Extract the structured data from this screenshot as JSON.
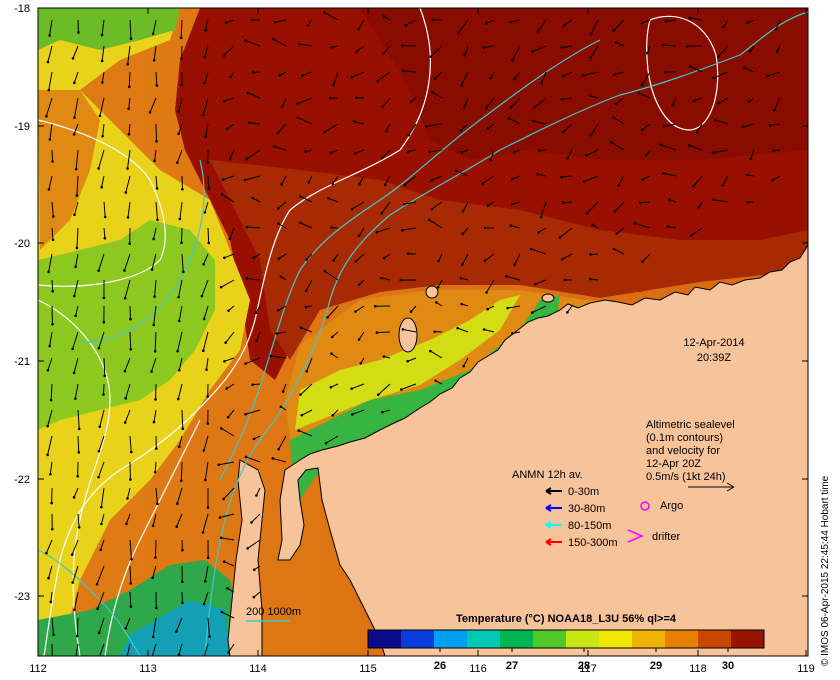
{
  "map": {
    "lon_ticks": [
      "112",
      "113",
      "114",
      "115",
      "116",
      "117",
      "118",
      "119"
    ],
    "lat_ticks": [
      "-18",
      "-19",
      "-20",
      "-21",
      "-22",
      "-23"
    ],
    "date_label": "12-Apr-2014",
    "time_label": "20:39Z",
    "credit": "© IMOS 06-Apr-2015 22:45:44 Hobart time"
  },
  "legend": {
    "altimetry_lines": [
      "Altimetric sealevel",
      "(0.1m contours)",
      "and velocity for",
      "12-Apr 20Z",
      "0.5m/s (1kt 24h)"
    ],
    "anmn_title": "ANMN 12h av.",
    "anmn_items": [
      {
        "label": "0-30m",
        "color": "#000000"
      },
      {
        "label": "30-80m",
        "color": "#0000ff"
      },
      {
        "label": "80-150m",
        "color": "#00ffff"
      },
      {
        "label": "150-300m",
        "color": "#ff0000"
      }
    ],
    "argo_label": "Argo",
    "drifter_label": "drifter",
    "depth_label": "200  1000m"
  },
  "colorbar": {
    "title": "Temperature (°C) NOAA18_L3U 56% ql>=4",
    "ticks": [
      "26",
      "27",
      "28",
      "29",
      "30"
    ],
    "tick_values": [
      26,
      27,
      28,
      29,
      30
    ],
    "range": [
      25.0,
      30.5
    ],
    "colors": [
      "#0a0a8c",
      "#0a3cdc",
      "#00a0f0",
      "#00c8b4",
      "#00b450",
      "#50c828",
      "#c8e614",
      "#f0e600",
      "#f0b400",
      "#e68200",
      "#c84600",
      "#961400"
    ]
  },
  "colors": {
    "land": "#f7c39a",
    "warm": "#9a1000",
    "contour": "#ffffff",
    "isobath": "#40c8c8"
  }
}
